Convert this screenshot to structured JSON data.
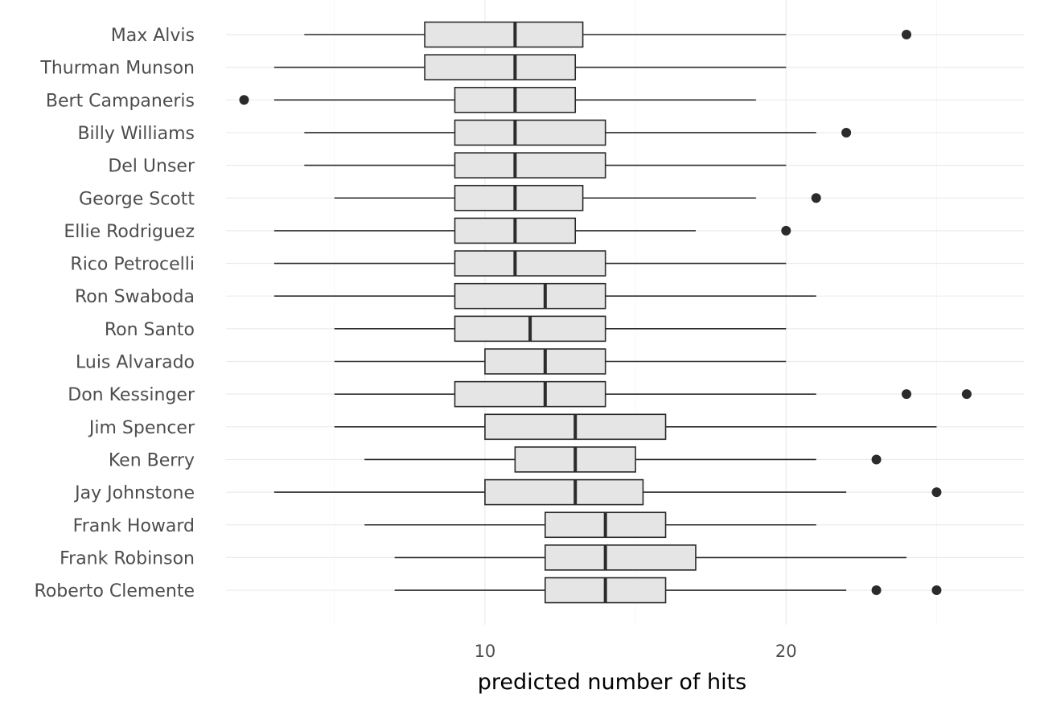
{
  "chart_data": {
    "type": "boxplot",
    "xlabel": "predicted number of hits",
    "ylabel": "",
    "xlim": [
      1.4,
      27.9
    ],
    "xticks": [
      10,
      20
    ],
    "grid": true,
    "legend": "none",
    "colors": {
      "box_fill": "#e5e5e5",
      "line": "#2b2b2b",
      "grid": "#ebebeb"
    },
    "categories": [
      "Max Alvis",
      "Thurman Munson",
      "Bert Campaneris",
      "Billy Williams",
      "Del Unser",
      "George Scott",
      "Ellie Rodriguez",
      "Rico Petrocelli",
      "Ron Swaboda",
      "Ron Santo",
      "Luis Alvarado",
      "Don Kessinger",
      "Jim Spencer",
      "Ken Berry",
      "Jay Johnstone",
      "Frank Howard",
      "Frank Robinson",
      "Roberto Clemente"
    ],
    "boxes": [
      {
        "name": "Max Alvis",
        "lower_whisker": 4,
        "q1": 8,
        "median": 11,
        "q3": 13.25,
        "upper_whisker": 20,
        "outliers": [
          24
        ]
      },
      {
        "name": "Thurman Munson",
        "lower_whisker": 3,
        "q1": 8,
        "median": 11,
        "q3": 13,
        "upper_whisker": 20,
        "outliers": []
      },
      {
        "name": "Bert Campaneris",
        "lower_whisker": 3,
        "q1": 9,
        "median": 11,
        "q3": 13,
        "upper_whisker": 19,
        "outliers": [
          2
        ]
      },
      {
        "name": "Billy Williams",
        "lower_whisker": 4,
        "q1": 9,
        "median": 11,
        "q3": 14,
        "upper_whisker": 21,
        "outliers": [
          22
        ]
      },
      {
        "name": "Del Unser",
        "lower_whisker": 4,
        "q1": 9,
        "median": 11,
        "q3": 14,
        "upper_whisker": 20,
        "outliers": []
      },
      {
        "name": "George Scott",
        "lower_whisker": 5,
        "q1": 9,
        "median": 11,
        "q3": 13.25,
        "upper_whisker": 19,
        "outliers": [
          21
        ]
      },
      {
        "name": "Ellie Rodriguez",
        "lower_whisker": 3,
        "q1": 9,
        "median": 11,
        "q3": 13,
        "upper_whisker": 17,
        "outliers": [
          20
        ]
      },
      {
        "name": "Rico Petrocelli",
        "lower_whisker": 3,
        "q1": 9,
        "median": 11,
        "q3": 14,
        "upper_whisker": 20,
        "outliers": []
      },
      {
        "name": "Ron Swaboda",
        "lower_whisker": 3,
        "q1": 9,
        "median": 12,
        "q3": 14,
        "upper_whisker": 21,
        "outliers": []
      },
      {
        "name": "Ron Santo",
        "lower_whisker": 5,
        "q1": 9,
        "median": 11.5,
        "q3": 14,
        "upper_whisker": 20,
        "outliers": []
      },
      {
        "name": "Luis Alvarado",
        "lower_whisker": 5,
        "q1": 10,
        "median": 12,
        "q3": 14,
        "upper_whisker": 20,
        "outliers": []
      },
      {
        "name": "Don Kessinger",
        "lower_whisker": 5,
        "q1": 9,
        "median": 12,
        "q3": 14,
        "upper_whisker": 21,
        "outliers": [
          24,
          26
        ]
      },
      {
        "name": "Jim Spencer",
        "lower_whisker": 5,
        "q1": 10,
        "median": 13,
        "q3": 16,
        "upper_whisker": 25,
        "outliers": []
      },
      {
        "name": "Ken Berry",
        "lower_whisker": 6,
        "q1": 11,
        "median": 13,
        "q3": 15,
        "upper_whisker": 21,
        "outliers": [
          23
        ]
      },
      {
        "name": "Jay Johnstone",
        "lower_whisker": 3,
        "q1": 10,
        "median": 13,
        "q3": 15.25,
        "upper_whisker": 22,
        "outliers": [
          25
        ]
      },
      {
        "name": "Frank Howard",
        "lower_whisker": 6,
        "q1": 12,
        "median": 14,
        "q3": 16,
        "upper_whisker": 21,
        "outliers": []
      },
      {
        "name": "Frank Robinson",
        "lower_whisker": 7,
        "q1": 12,
        "median": 14,
        "q3": 17,
        "upper_whisker": 24,
        "outliers": []
      },
      {
        "name": "Roberto Clemente",
        "lower_whisker": 7,
        "q1": 12,
        "median": 14,
        "q3": 16,
        "upper_whisker": 22,
        "outliers": [
          23,
          25
        ]
      }
    ]
  }
}
